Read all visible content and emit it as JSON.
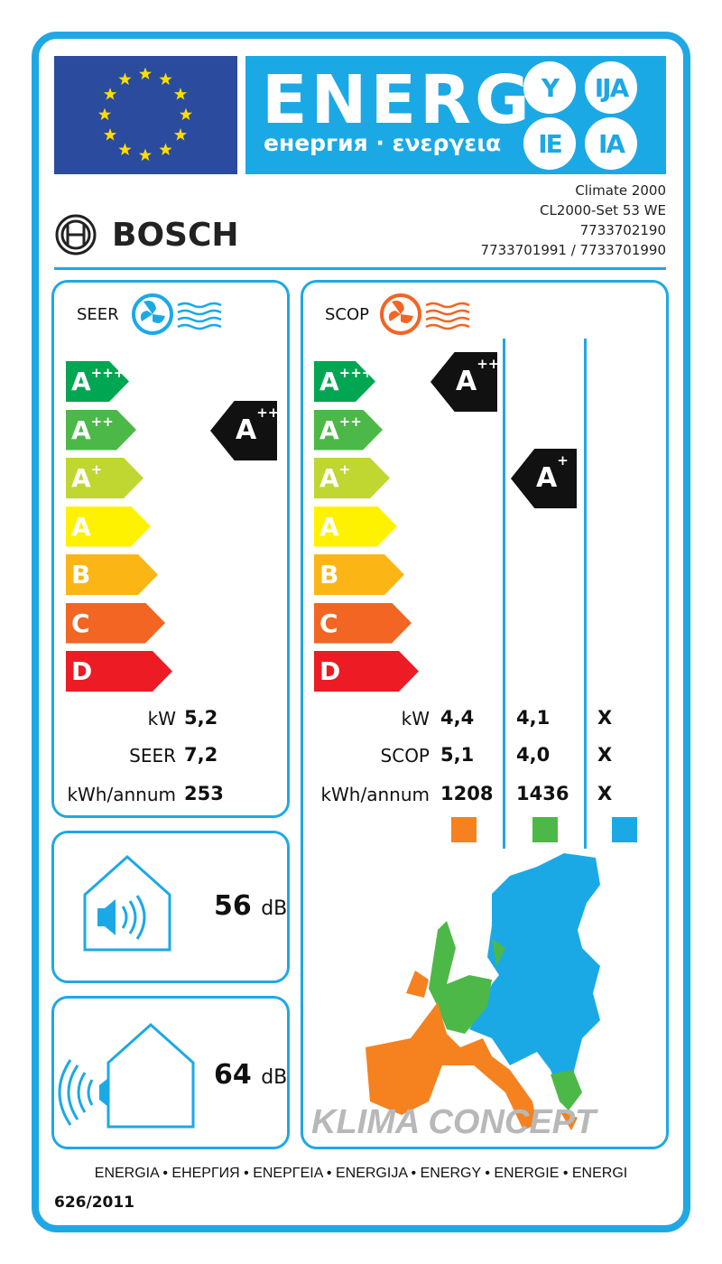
{
  "header": {
    "energy_word": "ENERG",
    "energy_sub": "енергия · ενεργεια",
    "suffixes": [
      "Y",
      "IJA",
      "IE",
      "IA"
    ]
  },
  "colors": {
    "frame": "#1fa8e4",
    "flag": "#2b4b9f",
    "star": "#ffdd00",
    "energy_bg": "#1ba9e6"
  },
  "brand": "BOSCH",
  "model": {
    "name": "Climate 2000",
    "set": "CL2000-Set 53 WE",
    "code1": "7733702190",
    "code2": "7733701991 / 7733701990"
  },
  "scale": [
    {
      "base": "A",
      "sup": "+++",
      "color": "#00a651"
    },
    {
      "base": "A",
      "sup": "++",
      "color": "#4cb848"
    },
    {
      "base": "A",
      "sup": "+",
      "color": "#bfd730"
    },
    {
      "base": "A",
      "sup": "",
      "color": "#fff200"
    },
    {
      "base": "B",
      "sup": "",
      "color": "#fbb616"
    },
    {
      "base": "C",
      "sup": "",
      "color": "#f26522"
    },
    {
      "base": "D",
      "sup": "",
      "color": "#ed1c24"
    }
  ],
  "cooling": {
    "title": "SEER",
    "icon": "fan-cold-icon",
    "class_base": "A",
    "class_sup": "++",
    "class_index": 1,
    "rows": [
      {
        "label": "kW",
        "value": "5,2"
      },
      {
        "label": "SEER",
        "value": "7,2"
      },
      {
        "label": "kWh/annum",
        "value": "253"
      }
    ]
  },
  "heating": {
    "title": "SCOP",
    "icon": "fan-warm-icon",
    "zones": [
      {
        "color": "#f5821f",
        "class_base": "A",
        "class_sup": "+++",
        "class_index": 0,
        "values": [
          "4,4",
          "5,1",
          "1208"
        ]
      },
      {
        "color": "#4cb848",
        "class_base": "A",
        "class_sup": "+",
        "class_index": 2,
        "values": [
          "4,1",
          "4,0",
          "1436"
        ]
      },
      {
        "color": "#1ba9e6",
        "values": [
          "X",
          "X",
          "X"
        ]
      }
    ],
    "labels": [
      "kW",
      "SCOP",
      "kWh/annum"
    ]
  },
  "noise": {
    "indoor": {
      "value": "56",
      "unit": "dB"
    },
    "outdoor": {
      "value": "64",
      "unit": "dB"
    }
  },
  "watermark": "KLIMA CONCEPT",
  "footer": {
    "languages": "ENERGIA • ЕНЕРГИЯ • ΕΝΕΡΓΕΙΑ • ENERGIJA • ENERGY • ENERGIE • ENERGI",
    "regulation": "626/2011"
  }
}
